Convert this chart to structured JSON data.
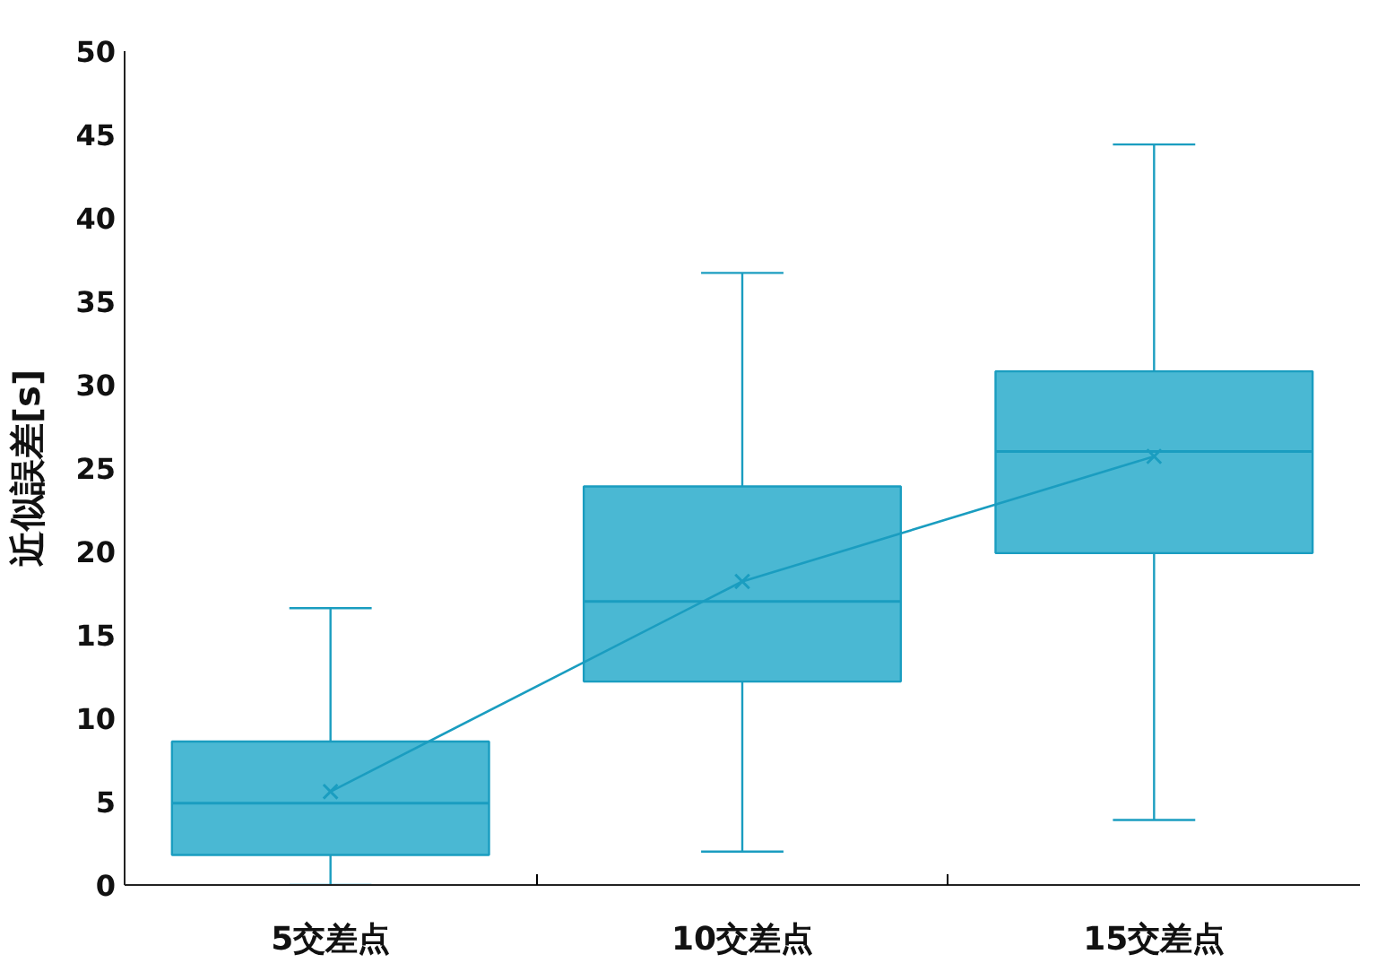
{
  "chart_data": {
    "type": "box",
    "ylabel": "近似誤差[s]",
    "categories": [
      "5交差点",
      "10交差点",
      "15交差点"
    ],
    "ylim": [
      0,
      50
    ],
    "yticks": [
      0,
      5,
      10,
      15,
      20,
      25,
      30,
      35,
      40,
      45,
      50
    ],
    "grid": false,
    "series": [
      {
        "color": "#4ab8d3",
        "boxes": [
          {
            "low": 0,
            "q1": 1.8,
            "median": 4.9,
            "q3": 8.6,
            "high": 16.6
          },
          {
            "low": 2.0,
            "q1": 12.2,
            "median": 17.0,
            "q3": 23.9,
            "high": 36.7
          },
          {
            "low": 3.9,
            "q1": 19.9,
            "median": 26.0,
            "q3": 30.8,
            "high": 44.4
          }
        ]
      },
      {
        "type": "line",
        "color": "#1a9dc0",
        "marker": "cross",
        "values": [
          5.6,
          18.2,
          25.7
        ]
      }
    ]
  }
}
